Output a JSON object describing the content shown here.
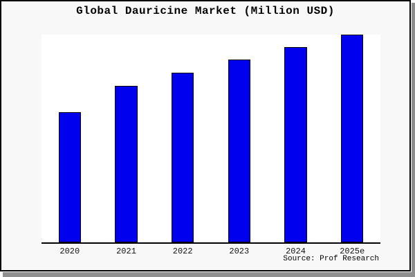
{
  "figure": {
    "background": "#f8f8f8",
    "frame_border_color": "#000000",
    "shadow_color": "#8f8f8f"
  },
  "chart_data": {
    "type": "bar",
    "title": "Global Dauricine Market (Million USD)",
    "categories": [
      "2020",
      "2021",
      "2022",
      "2023",
      "2024",
      "2025e"
    ],
    "values": [
      62.8,
      75.3,
      81.6,
      88,
      94,
      100
    ],
    "value_scale_note": "No y-axis, ticks, gridlines or value labels are shown in the image; values are relative bar heights normalized so the tallest bar (2025e) = 100.",
    "xlabel": "",
    "ylabel": "",
    "ylim": [
      0,
      100
    ],
    "grid": false,
    "legend": false,
    "bar_color": "#0000ee",
    "bar_border_color": "#000000",
    "axis_line_color": "#000000"
  },
  "source": {
    "label": "Source: Prof Research"
  }
}
